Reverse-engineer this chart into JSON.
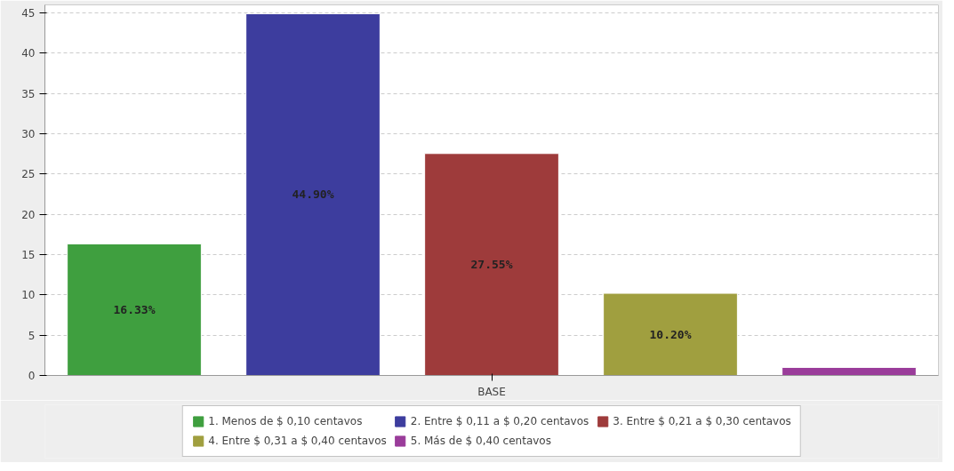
{
  "chart_data": {
    "type": "bar",
    "xlabel": null,
    "categories": [
      "BASE"
    ],
    "series": [
      {
        "name": "1. Menos de $ 0,10 centavos",
        "color": "#3f9f3f",
        "values": [
          16.33
        ],
        "value_labels": [
          "16.33%"
        ]
      },
      {
        "name": "2. Entre $ 0,11 a $ 0,20 centavos",
        "color": "#3d3d9e",
        "values": [
          44.9
        ],
        "value_labels": [
          "44.90%"
        ]
      },
      {
        "name": "3. Entre $ 0,21 a $ 0,30 centavos",
        "color": "#9e3b3b",
        "values": [
          27.55
        ],
        "value_labels": [
          "27.55%"
        ]
      },
      {
        "name": "4. Entre $ 0,31 a $ 0,40 centavos",
        "color": "#a09f3f",
        "values": [
          10.2
        ],
        "value_labels": [
          "10.20%"
        ]
      },
      {
        "name": "5. Más de $ 0,40 centavos",
        "color": "#9a3c9a",
        "values": [
          1
        ],
        "value_labels": [
          null
        ]
      }
    ],
    "ylim": [
      0,
      46
    ],
    "yticks": [
      0,
      5,
      10,
      15,
      20,
      25,
      30,
      35,
      40,
      45
    ],
    "grid": "y",
    "legend": "bottom"
  }
}
